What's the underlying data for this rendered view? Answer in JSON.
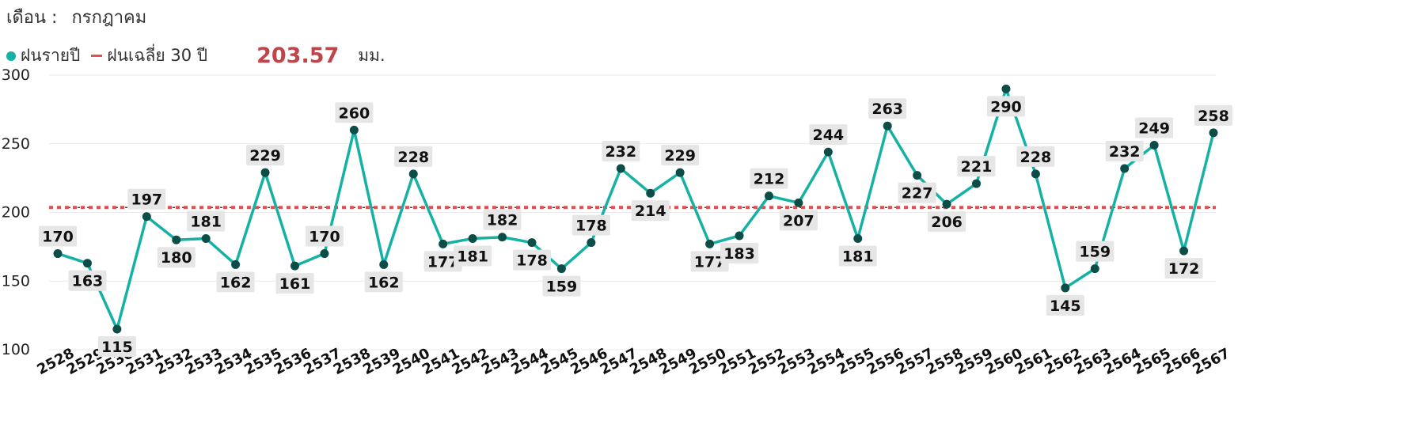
{
  "header": {
    "month_label": "เดือน :",
    "month_value": "กรกฎาคม"
  },
  "legend": {
    "annual_label": "ฝนรายปี",
    "avg_label": "ฝนเฉลี่ย 30 ปี",
    "avg_value": "203.57",
    "unit": "มม."
  },
  "colors": {
    "series": "#14b1a4",
    "point": "#0c4d47",
    "average": "#e05050",
    "avg_text": "#c0454b",
    "label_bg": "#e6e6e6"
  },
  "chart_data": {
    "type": "line",
    "categories": [
      "2528",
      "2529",
      "2530",
      "2531",
      "2532",
      "2533",
      "2534",
      "2535",
      "2536",
      "2537",
      "2538",
      "2539",
      "2540",
      "2541",
      "2542",
      "2543",
      "2544",
      "2545",
      "2546",
      "2547",
      "2548",
      "2549",
      "2550",
      "2551",
      "2552",
      "2553",
      "2554",
      "2555",
      "2556",
      "2557",
      "2558",
      "2559",
      "2560",
      "2561",
      "2562",
      "2563",
      "2564",
      "2565",
      "2566",
      "2567"
    ],
    "series": [
      {
        "name": "ฝนรายปี",
        "values": [
          170,
          163,
          115,
          197,
          180,
          181,
          162,
          229,
          161,
          170,
          260,
          162,
          228,
          177,
          181,
          182,
          178,
          159,
          178,
          232,
          214,
          229,
          177,
          183,
          212,
          207,
          244,
          181,
          263,
          227,
          206,
          221,
          290,
          228,
          145,
          159,
          232,
          249,
          172,
          258
        ]
      },
      {
        "name": "ฝนเฉลี่ย 30 ปี",
        "value": 203.57
      }
    ],
    "label_positions": [
      "above",
      "below",
      "below",
      "above",
      "below",
      "above",
      "below",
      "above",
      "below",
      "above",
      "above",
      "below",
      "above",
      "below",
      "below",
      "above",
      "below",
      "below",
      "above",
      "above",
      "below",
      "above",
      "below",
      "below",
      "above",
      "below",
      "above",
      "below",
      "above",
      "below",
      "below",
      "above",
      "below",
      "above",
      "below",
      "above",
      "above",
      "above",
      "below",
      "above"
    ],
    "ylim": [
      100,
      300
    ],
    "yticks": [
      100,
      150,
      200,
      250,
      300
    ],
    "grid": true
  }
}
